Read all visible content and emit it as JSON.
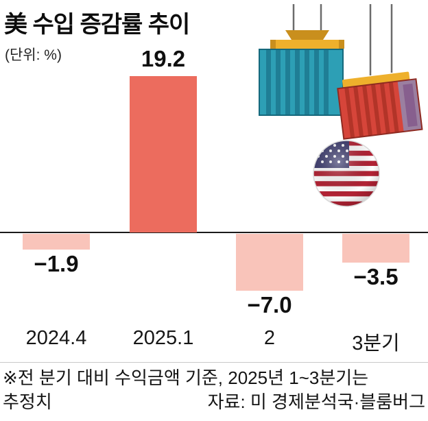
{
  "header": {
    "title": "美 수입 증감률 추이",
    "unit_label": "(단위: %)"
  },
  "chart_data": {
    "type": "bar",
    "title": "美 수입 증감률 추이",
    "categories": [
      "2024.4",
      "2025.1",
      "2",
      "3분기"
    ],
    "values": [
      -1.9,
      19.2,
      -7.0,
      -3.5
    ],
    "value_labels": [
      "−1.9",
      "19.2",
      "−7.0",
      "−3.5"
    ],
    "ylabel": "(단위: %)",
    "ylim": [
      -10,
      22
    ],
    "grid": false,
    "legend": "none",
    "colors": {
      "positive": "#ec6c5e",
      "negative": "#f9c4ba",
      "axis": "#1a1a1a"
    }
  },
  "footnote": {
    "line1": "※전 분기 대비 수익금액 기준, 2025년 1~3분기는",
    "line2_left": "추정치",
    "source": "자료: 미 경제분석국·블룸버그"
  },
  "illustration": {
    "icons": [
      "shipping-container-blue-icon",
      "shipping-container-red-icon",
      "us-flag-ball-icon"
    ],
    "colors": {
      "container_blue": "#2d9fb5",
      "container_blue_dark": "#1f7e95",
      "container_red": "#d6453a",
      "container_red_dark": "#b23428",
      "container_red_edge": "#9b7fa0",
      "spreader_yellow": "#eeb02c",
      "spreader_yellow_dark": "#c98f1d",
      "cable_gray": "#6b6b6b",
      "flag_red": "#b22234",
      "flag_blue": "#3c3b6e",
      "flag_white": "#ffffff"
    }
  }
}
